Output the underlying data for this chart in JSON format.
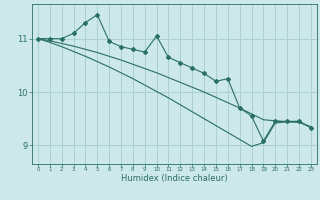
{
  "x_values": [
    0,
    1,
    2,
    3,
    4,
    5,
    6,
    7,
    8,
    9,
    10,
    11,
    12,
    13,
    14,
    15,
    16,
    17,
    18,
    19,
    20,
    21,
    22,
    23
  ],
  "line_main": [
    11.0,
    11.0,
    11.0,
    11.1,
    11.3,
    11.45,
    10.95,
    10.85,
    10.8,
    10.75,
    11.05,
    10.65,
    10.55,
    10.45,
    10.35,
    10.2,
    10.25,
    9.7,
    9.55,
    9.08,
    9.45,
    9.45,
    9.45,
    9.33
  ],
  "line_diag1": [
    11.0,
    10.96,
    10.91,
    10.86,
    10.8,
    10.74,
    10.67,
    10.6,
    10.52,
    10.44,
    10.36,
    10.27,
    10.18,
    10.09,
    10.0,
    9.9,
    9.8,
    9.7,
    9.59,
    9.48,
    9.46,
    9.44,
    9.43,
    9.35
  ],
  "line_diag2": [
    11.0,
    10.93,
    10.85,
    10.76,
    10.67,
    10.57,
    10.47,
    10.36,
    10.25,
    10.13,
    10.01,
    9.89,
    9.76,
    9.63,
    9.5,
    9.37,
    9.24,
    9.11,
    8.98,
    9.05,
    9.42,
    9.44,
    9.45,
    9.33
  ],
  "bg_color": "#cce8e8",
  "grid_color": "#aad0d0",
  "line_color": "#2a6e68",
  "xlabel": "Humidex (Indice chaleur)",
  "yticks": [
    9,
    10,
    11
  ],
  "xlim": [
    -0.5,
    23.5
  ],
  "ylim": [
    8.65,
    11.65
  ]
}
